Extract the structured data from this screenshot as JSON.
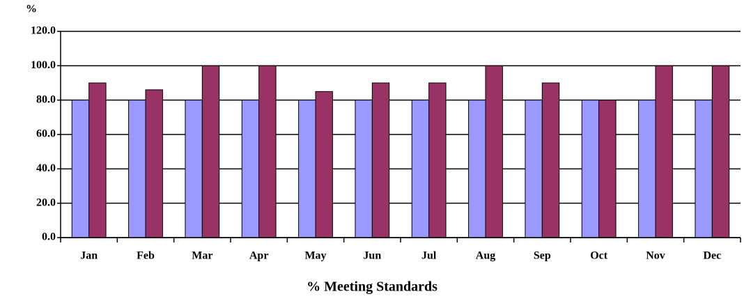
{
  "chart_data": {
    "type": "bar",
    "y_axis_label": "%",
    "x_axis_label": "% Meeting Standards",
    "categories": [
      "Jan",
      "Feb",
      "Mar",
      "Apr",
      "May",
      "Jun",
      "Jul",
      "Aug",
      "Sep",
      "Oct",
      "Nov",
      "Dec"
    ],
    "series": [
      {
        "color": "#9999ff",
        "values": [
          80,
          80,
          80,
          80,
          80,
          80,
          80,
          80,
          80,
          80,
          80,
          80
        ]
      },
      {
        "color": "#993366",
        "values": [
          90,
          86,
          100,
          100,
          85,
          90,
          90,
          100,
          90,
          80,
          100,
          100
        ]
      }
    ],
    "ylim": [
      0,
      120
    ],
    "yticks": [
      {
        "value": 0,
        "label": "0.0"
      },
      {
        "value": 20,
        "label": "20.0"
      },
      {
        "value": 40,
        "label": "40.0"
      },
      {
        "value": 60,
        "label": "60.0"
      },
      {
        "value": 80,
        "label": "80.0"
      },
      {
        "value": 100,
        "label": "100.0"
      },
      {
        "value": 120,
        "label": "120.0"
      }
    ],
    "grid": true
  }
}
